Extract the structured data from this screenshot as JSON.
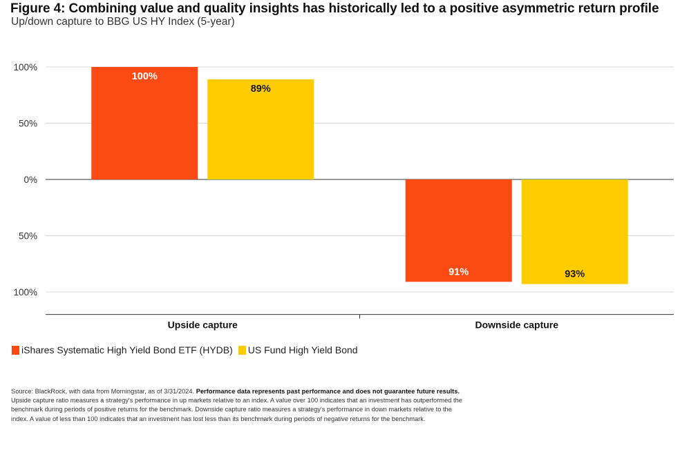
{
  "title": "Figure 4: Combining value and quality insights has historically led to a positive asymmetric return profile",
  "subtitle": "Up/down capture to BBG US HY Index (5-year)",
  "colors": {
    "hydb": "#fc4a14",
    "fund": "#ffcc00",
    "grid": "#d9d9d9",
    "axis": "#333333"
  },
  "chart_data": {
    "type": "bar",
    "title": "Figure 4: Combining value and quality insights has historically led to a positive asymmetric return profile",
    "subtitle": "Up/down capture to BBG US HY Index (5-year)",
    "categories": [
      "Upside capture",
      "Downside capture"
    ],
    "direction": [
      1,
      -1
    ],
    "series": [
      {
        "name": "iShares Systematic High Yield Bond ETF (HYDB)",
        "values": [
          100,
          91
        ],
        "labels": [
          "100%",
          "91%"
        ]
      },
      {
        "name": "US Fund High Yield Bond",
        "values": [
          89,
          93
        ],
        "labels": [
          "89%",
          "93%"
        ]
      }
    ],
    "yticks": [
      {
        "value": 100,
        "label": "100%"
      },
      {
        "value": 50,
        "label": "50%"
      },
      {
        "value": 0,
        "label": "0%"
      },
      {
        "value": -50,
        "label": "50%"
      },
      {
        "value": -100,
        "label": "100%"
      }
    ],
    "ylim": [
      -120,
      100
    ],
    "grid": true,
    "legend_position": "bottom-left"
  },
  "footer": {
    "source": "Source: BlackRock, with data from Morningstar, as of 3/31/2024. ",
    "source_bold": "Performance data represents past performance and does not guarantee future results.",
    "note": "Upside capture ratio measures a strategy's performance in up markets relative to an index. A value over 100 indicates that an investment has outperformed the benchmark during periods of positive returns for the benchmark. Downside capture ratio measures a strategy's performance in down markets relative to the index. A value of less than 100 indicates that an investment has lost less than its benchmark during periods of negative returns for the benchmark."
  }
}
